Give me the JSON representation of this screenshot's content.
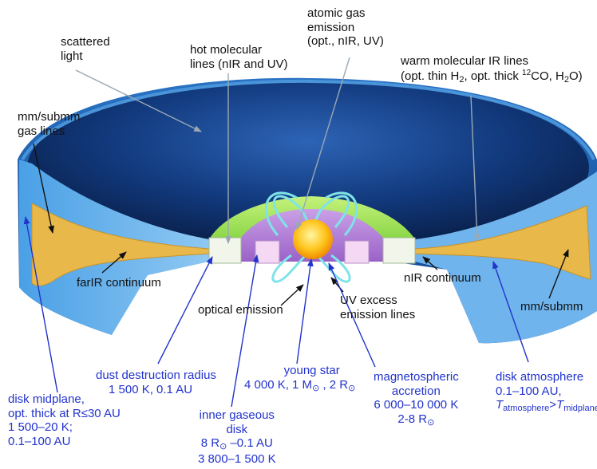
{
  "colors": {
    "outer_shell": "#1f62b0",
    "outer_rim": "#3a8fd8",
    "inner_cavity": "#0c1f4d",
    "disk_fill": "#6fb4ec",
    "midplane": "#e8b84a",
    "inner_gas_disk": "#9be34a",
    "magnetosphere": "#b084d6",
    "star": "#ffc51e",
    "field_lines": "#7fe3e8",
    "black_label": "#111111",
    "blue_label": "#2233cc"
  },
  "labels": {
    "scattered_light": [
      "scattered",
      "light"
    ],
    "hot_molecular": [
      "hot molecular",
      "lines (nIR and UV)"
    ],
    "atomic_gas": [
      "atomic gas",
      "emission",
      "(opt., nIR, UV)"
    ],
    "warm_ir": {
      "line1": "warm molecular IR lines",
      "open": "(opt. thin H",
      "h2_sub": "2",
      "mid": ", opt. thick ",
      "co_sup": "12",
      "co": "CO, H",
      "h2o_sub": "2",
      "close": "O)"
    },
    "mm_gas": [
      "mm/submm",
      "gas lines"
    ],
    "farir": "farIR continuum",
    "nir": "nIR continuum",
    "optical": "optical emission",
    "uv_excess": [
      "UV excess",
      "emission lines"
    ],
    "mm_submm": "mm/submm",
    "dust_destruction": [
      "dust destruction radius",
      "1 500 K, 0.1 AU"
    ],
    "young_star": {
      "title": "young star",
      "a": "4 000 K, 1 M",
      "b": " , 2 R",
      "sun": "⊙"
    },
    "magnetospheric": {
      "l1": "magnetospheric",
      "l2": "accretion",
      "l3": "6 000–10 000 K",
      "l4a": "2-8 R",
      "sun": "⊙"
    },
    "disk_atmosphere": {
      "l1": "disk atmosphere",
      "l2": "0.1–100 AU,",
      "t": "T",
      "atm": "atmosphere",
      "gt": ">",
      "mid": "midplane"
    },
    "disk_midplane": [
      "disk midplane,",
      "opt. thick at R≤30 AU",
      "1 500–20 K;",
      "0.1–100 AU"
    ],
    "inner_gaseous": {
      "l1": "inner gaseous",
      "l2": "disk",
      "l3a": "8 R",
      "sun": "⊙",
      "l3b": " –0.1 AU",
      "l4": "3 800–1 500 K"
    }
  }
}
